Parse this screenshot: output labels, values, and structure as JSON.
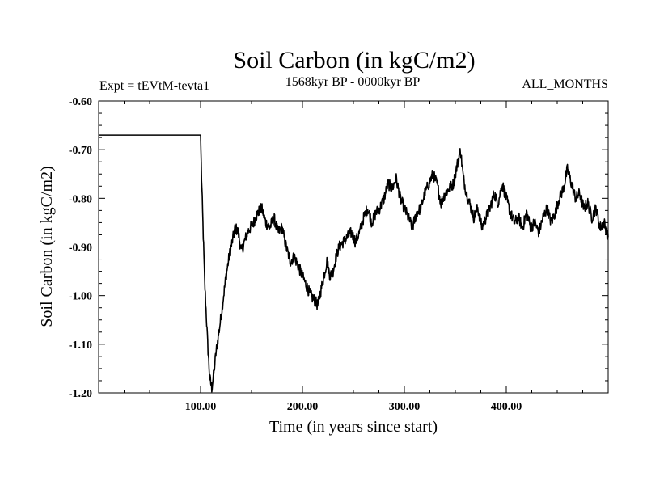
{
  "chart_data": {
    "type": "line",
    "title": "Soil Carbon (in kgC/m2)",
    "subtitle_left": "Expt = tEVtM-tevta1",
    "subtitle_center": "1568kyr BP - 0000kyr BP",
    "subtitle_right": "ALL_MONTHS",
    "xlabel": "Time (in years since start)",
    "ylabel": "Soil Carbon (in kgC/m2)",
    "xlim": [
      0,
      500
    ],
    "ylim": [
      -1.2,
      -0.6
    ],
    "x_ticks": [
      {
        "value": 100,
        "label": "100.00"
      },
      {
        "value": 200,
        "label": "200.00"
      },
      {
        "value": 300,
        "label": "300.00"
      },
      {
        "value": 400,
        "label": "400.00"
      }
    ],
    "y_ticks": [
      {
        "value": -0.6,
        "label": "-0.60"
      },
      {
        "value": -0.7,
        "label": "-0.70"
      },
      {
        "value": -0.8,
        "label": "-0.80"
      },
      {
        "value": -0.9,
        "label": "-0.90"
      },
      {
        "value": -1.0,
        "label": "-1.00"
      },
      {
        "value": -1.1,
        "label": "-1.10"
      },
      {
        "value": -1.2,
        "label": "-1.20"
      }
    ],
    "series": [
      {
        "name": "Soil Carbon",
        "color": "#000000",
        "x": [
          0,
          100,
          101,
          104,
          107,
          109,
          111,
          113,
          115,
          117,
          119,
          122,
          125,
          128,
          131,
          134,
          137,
          140,
          143,
          146,
          149,
          152,
          156,
          160,
          164,
          168,
          172,
          176,
          180,
          184,
          188,
          192,
          196,
          200,
          204,
          208,
          212,
          215,
          218,
          221,
          224,
          227,
          230,
          233,
          236,
          240,
          244,
          248,
          252,
          256,
          260,
          264,
          268,
          272,
          276,
          280,
          284,
          288,
          292,
          296,
          300,
          304,
          308,
          312,
          316,
          320,
          324,
          328,
          332,
          336,
          340,
          344,
          348,
          352,
          355,
          358,
          361,
          364,
          368,
          372,
          376,
          380,
          384,
          388,
          392,
          396,
          400,
          404,
          408,
          412,
          416,
          420,
          424,
          428,
          432,
          436,
          440,
          444,
          448,
          452,
          456,
          460,
          464,
          468,
          472,
          476,
          480,
          484,
          488,
          492,
          496,
          500
        ],
        "values": [
          -0.67,
          -0.67,
          -0.76,
          -0.97,
          -1.1,
          -1.17,
          -1.19,
          -1.16,
          -1.12,
          -1.09,
          -1.06,
          -1.01,
          -0.96,
          -0.92,
          -0.89,
          -0.86,
          -0.87,
          -0.91,
          -0.89,
          -0.87,
          -0.86,
          -0.85,
          -0.83,
          -0.82,
          -0.85,
          -0.86,
          -0.84,
          -0.87,
          -0.86,
          -0.9,
          -0.93,
          -0.92,
          -0.94,
          -0.96,
          -0.98,
          -1.0,
          -1.01,
          -1.02,
          -0.99,
          -0.96,
          -0.93,
          -0.96,
          -0.95,
          -0.92,
          -0.9,
          -0.89,
          -0.88,
          -0.87,
          -0.89,
          -0.87,
          -0.84,
          -0.82,
          -0.85,
          -0.83,
          -0.82,
          -0.8,
          -0.77,
          -0.78,
          -0.76,
          -0.8,
          -0.82,
          -0.84,
          -0.86,
          -0.83,
          -0.82,
          -0.79,
          -0.77,
          -0.75,
          -0.77,
          -0.81,
          -0.79,
          -0.78,
          -0.77,
          -0.73,
          -0.7,
          -0.76,
          -0.79,
          -0.81,
          -0.84,
          -0.82,
          -0.86,
          -0.84,
          -0.82,
          -0.79,
          -0.81,
          -0.77,
          -0.8,
          -0.83,
          -0.85,
          -0.84,
          -0.86,
          -0.83,
          -0.86,
          -0.85,
          -0.87,
          -0.84,
          -0.82,
          -0.85,
          -0.83,
          -0.8,
          -0.78,
          -0.74,
          -0.77,
          -0.8,
          -0.79,
          -0.82,
          -0.81,
          -0.84,
          -0.82,
          -0.86,
          -0.85,
          -0.88
        ]
      }
    ]
  }
}
